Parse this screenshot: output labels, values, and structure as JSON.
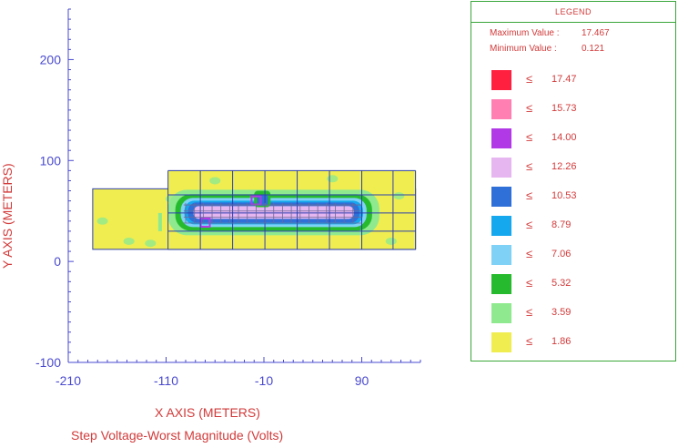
{
  "chart_data": {
    "type": "heatmap",
    "title": "Step Voltage-Worst Magnitude (Volts)",
    "xlabel": "X AXIS  (METERS)",
    "ylabel": "Y AXIS  (METERS)",
    "xlim": [
      -210,
      150
    ],
    "ylim": [
      -100,
      250
    ],
    "x_ticks": [
      -210,
      -110,
      -10,
      90
    ],
    "y_ticks": [
      -100,
      0,
      100,
      200
    ],
    "grid": true,
    "legend": {
      "title": "LEGEND",
      "max_label": "Maximum Value :",
      "max_value": "17.467",
      "min_label": "Minimum Value :",
      "min_value": "0.121",
      "symbol": "≤",
      "entries": [
        {
          "color": "#ff2040",
          "value": "17.47"
        },
        {
          "color": "#ff7fb2",
          "value": "15.73"
        },
        {
          "color": "#b13ae6",
          "value": "14.00"
        },
        {
          "color": "#e6b6f0",
          "value": "12.26"
        },
        {
          "color": "#2f6fd8",
          "value": "10.53"
        },
        {
          "color": "#16a8ee",
          "value": "8.79"
        },
        {
          "color": "#7fd2f5",
          "value": "7.06"
        },
        {
          "color": "#26bb2e",
          "value": "5.32"
        },
        {
          "color": "#8fea8f",
          "value": "3.59"
        },
        {
          "color": "#f0ed50",
          "value": "1.86"
        }
      ]
    },
    "regions": {
      "outer_rectangle": {
        "x": [
          -185,
          145
        ],
        "y": [
          12,
          72
        ],
        "class": "≤ 1.86"
      },
      "mesh_area": {
        "x": [
          -108,
          145
        ],
        "y": [
          12,
          90
        ]
      },
      "high_gradient_zone": {
        "x": [
          -95,
          95
        ],
        "y": [
          35,
          62
        ],
        "class": "5.32 – 10.53"
      },
      "peak_spots": [
        {
          "x": -18,
          "y": 60,
          "class": "14.00"
        },
        {
          "x": -70,
          "y": 38,
          "class": "14.00"
        }
      ]
    },
    "mesh_lines": {
      "x": [
        -108,
        -75,
        -42,
        -9,
        24,
        57,
        90,
        122,
        145
      ],
      "y": [
        12,
        30,
        48,
        66,
        90
      ]
    }
  }
}
